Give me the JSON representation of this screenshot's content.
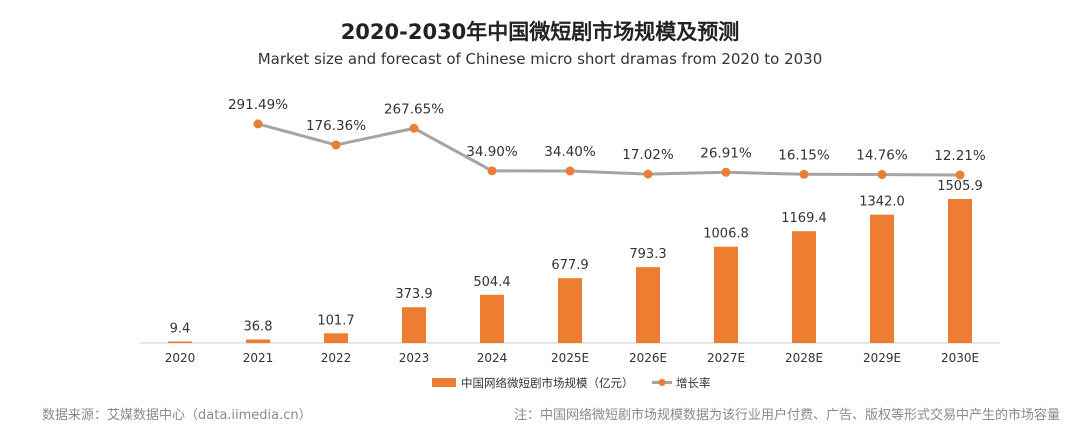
{
  "chart_data": {
    "type": "bar+line",
    "title": "2020-2030年中国微短剧市场规模及预测",
    "subtitle": "Market size and forecast of Chinese micro short dramas from 2020 to 2030",
    "categories": [
      "2020",
      "2021",
      "2022",
      "2023",
      "2024",
      "2025E",
      "2026E",
      "2027E",
      "2028E",
      "2029E",
      "2030E"
    ],
    "series": [
      {
        "name": "中国网络微短剧市场规模（亿元）",
        "type": "bar",
        "color": "#ED7D31",
        "values": [
          9.4,
          36.8,
          101.7,
          373.9,
          504.4,
          677.9,
          793.3,
          1006.8,
          1169.4,
          1342.0,
          1505.9
        ],
        "labels": [
          "9.4",
          "36.8",
          "101.7",
          "373.9",
          "504.4",
          "677.9",
          "793.3",
          "1006.8",
          "1169.4",
          "1342.0",
          "1505.9"
        ]
      },
      {
        "name": "增长率",
        "type": "line",
        "color": "#A5A5A5",
        "marker_color": "#ED7D31",
        "values": [
          null,
          291.49,
          176.36,
          267.65,
          34.9,
          34.4,
          17.02,
          26.91,
          16.15,
          14.76,
          12.21
        ],
        "labels": [
          "",
          "291.49%",
          "176.36%",
          "267.65%",
          "34.90%",
          "34.40%",
          "17.02%",
          "26.91%",
          "16.15%",
          "14.76%",
          "12.21%"
        ]
      }
    ],
    "legend": "bottom-center",
    "grid": false
  },
  "footer": {
    "source": "数据来源：艾媒数据中心（data.iimedia.cn）",
    "note": "注：中国网络微短剧市场规模数据为该行业用户付费、广告、版权等形式交易中产生的市场容量"
  }
}
